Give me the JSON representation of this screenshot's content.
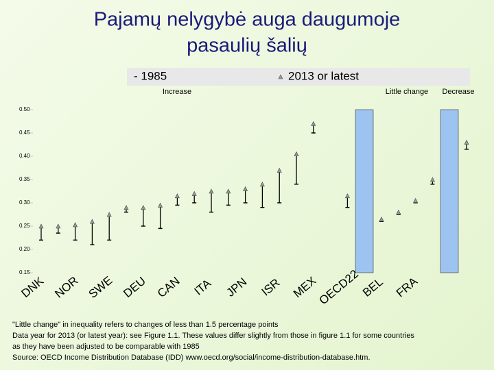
{
  "chart_data": {
    "type": "range",
    "title": [
      "Pajamų nelygybė auga daugumoje",
      "pasaulių šalių"
    ],
    "annotations": [
      "Increase",
      "Little change",
      "Decrease"
    ],
    "notes": [
      "\"Little change\" in inequality refers to changes of less than 1.5 percentage points",
      "Data year for 2013 (or latest year): see Figure 1.1. These values differ slightly from those in figure 1.1 for some countries",
      "as they have been adjusted to be comparable with 1985",
      "Source: OECD Income Distribution Database (IDD) www.oecd.org/social/income-distribution-database.htm."
    ],
    "categories": [
      "DNK",
      null,
      "NOR",
      null,
      "SWE",
      null,
      "DEU",
      null,
      "CAN",
      null,
      "ITA",
      null,
      "JPN",
      null,
      "ISR",
      null,
      "MEX",
      null,
      "OECD22",
      null,
      "BEL",
      null,
      "FRA",
      null,
      null,
      null
    ],
    "series": [
      {
        "name": "- 1985",
        "color": "#000000",
        "values": [
          0.22,
          0.235,
          0.22,
          0.21,
          0.22,
          0.28,
          0.25,
          0.245,
          0.295,
          0.3,
          0.28,
          0.295,
          0.3,
          0.29,
          0.3,
          0.34,
          0.45,
          null,
          0.29,
          null,
          0.26,
          0.275,
          0.3,
          0.34,
          null,
          0.415
        ]
      },
      {
        "name": "2013 or latest",
        "color": "#9a9a9a",
        "values": [
          0.25,
          0.25,
          0.253,
          0.26,
          0.275,
          0.29,
          0.29,
          0.295,
          0.315,
          0.32,
          0.325,
          0.325,
          0.33,
          0.34,
          0.37,
          0.405,
          0.47,
          null,
          0.315,
          null,
          0.265,
          0.28,
          0.305,
          0.35,
          null,
          0.43
        ]
      }
    ],
    "ylim": [
      0.15,
      0.5
    ],
    "yticks": [
      0.15,
      {
        "value": 0.2,
        "label": "0.20"
      },
      0.25,
      {
        "value": 0.3,
        "label": "0.30"
      },
      0.35,
      {
        "value": 0.4,
        "label": "0.40"
      },
      0.45,
      {
        "value": 0.5,
        "label": "0.50"
      }
    ]
  }
}
